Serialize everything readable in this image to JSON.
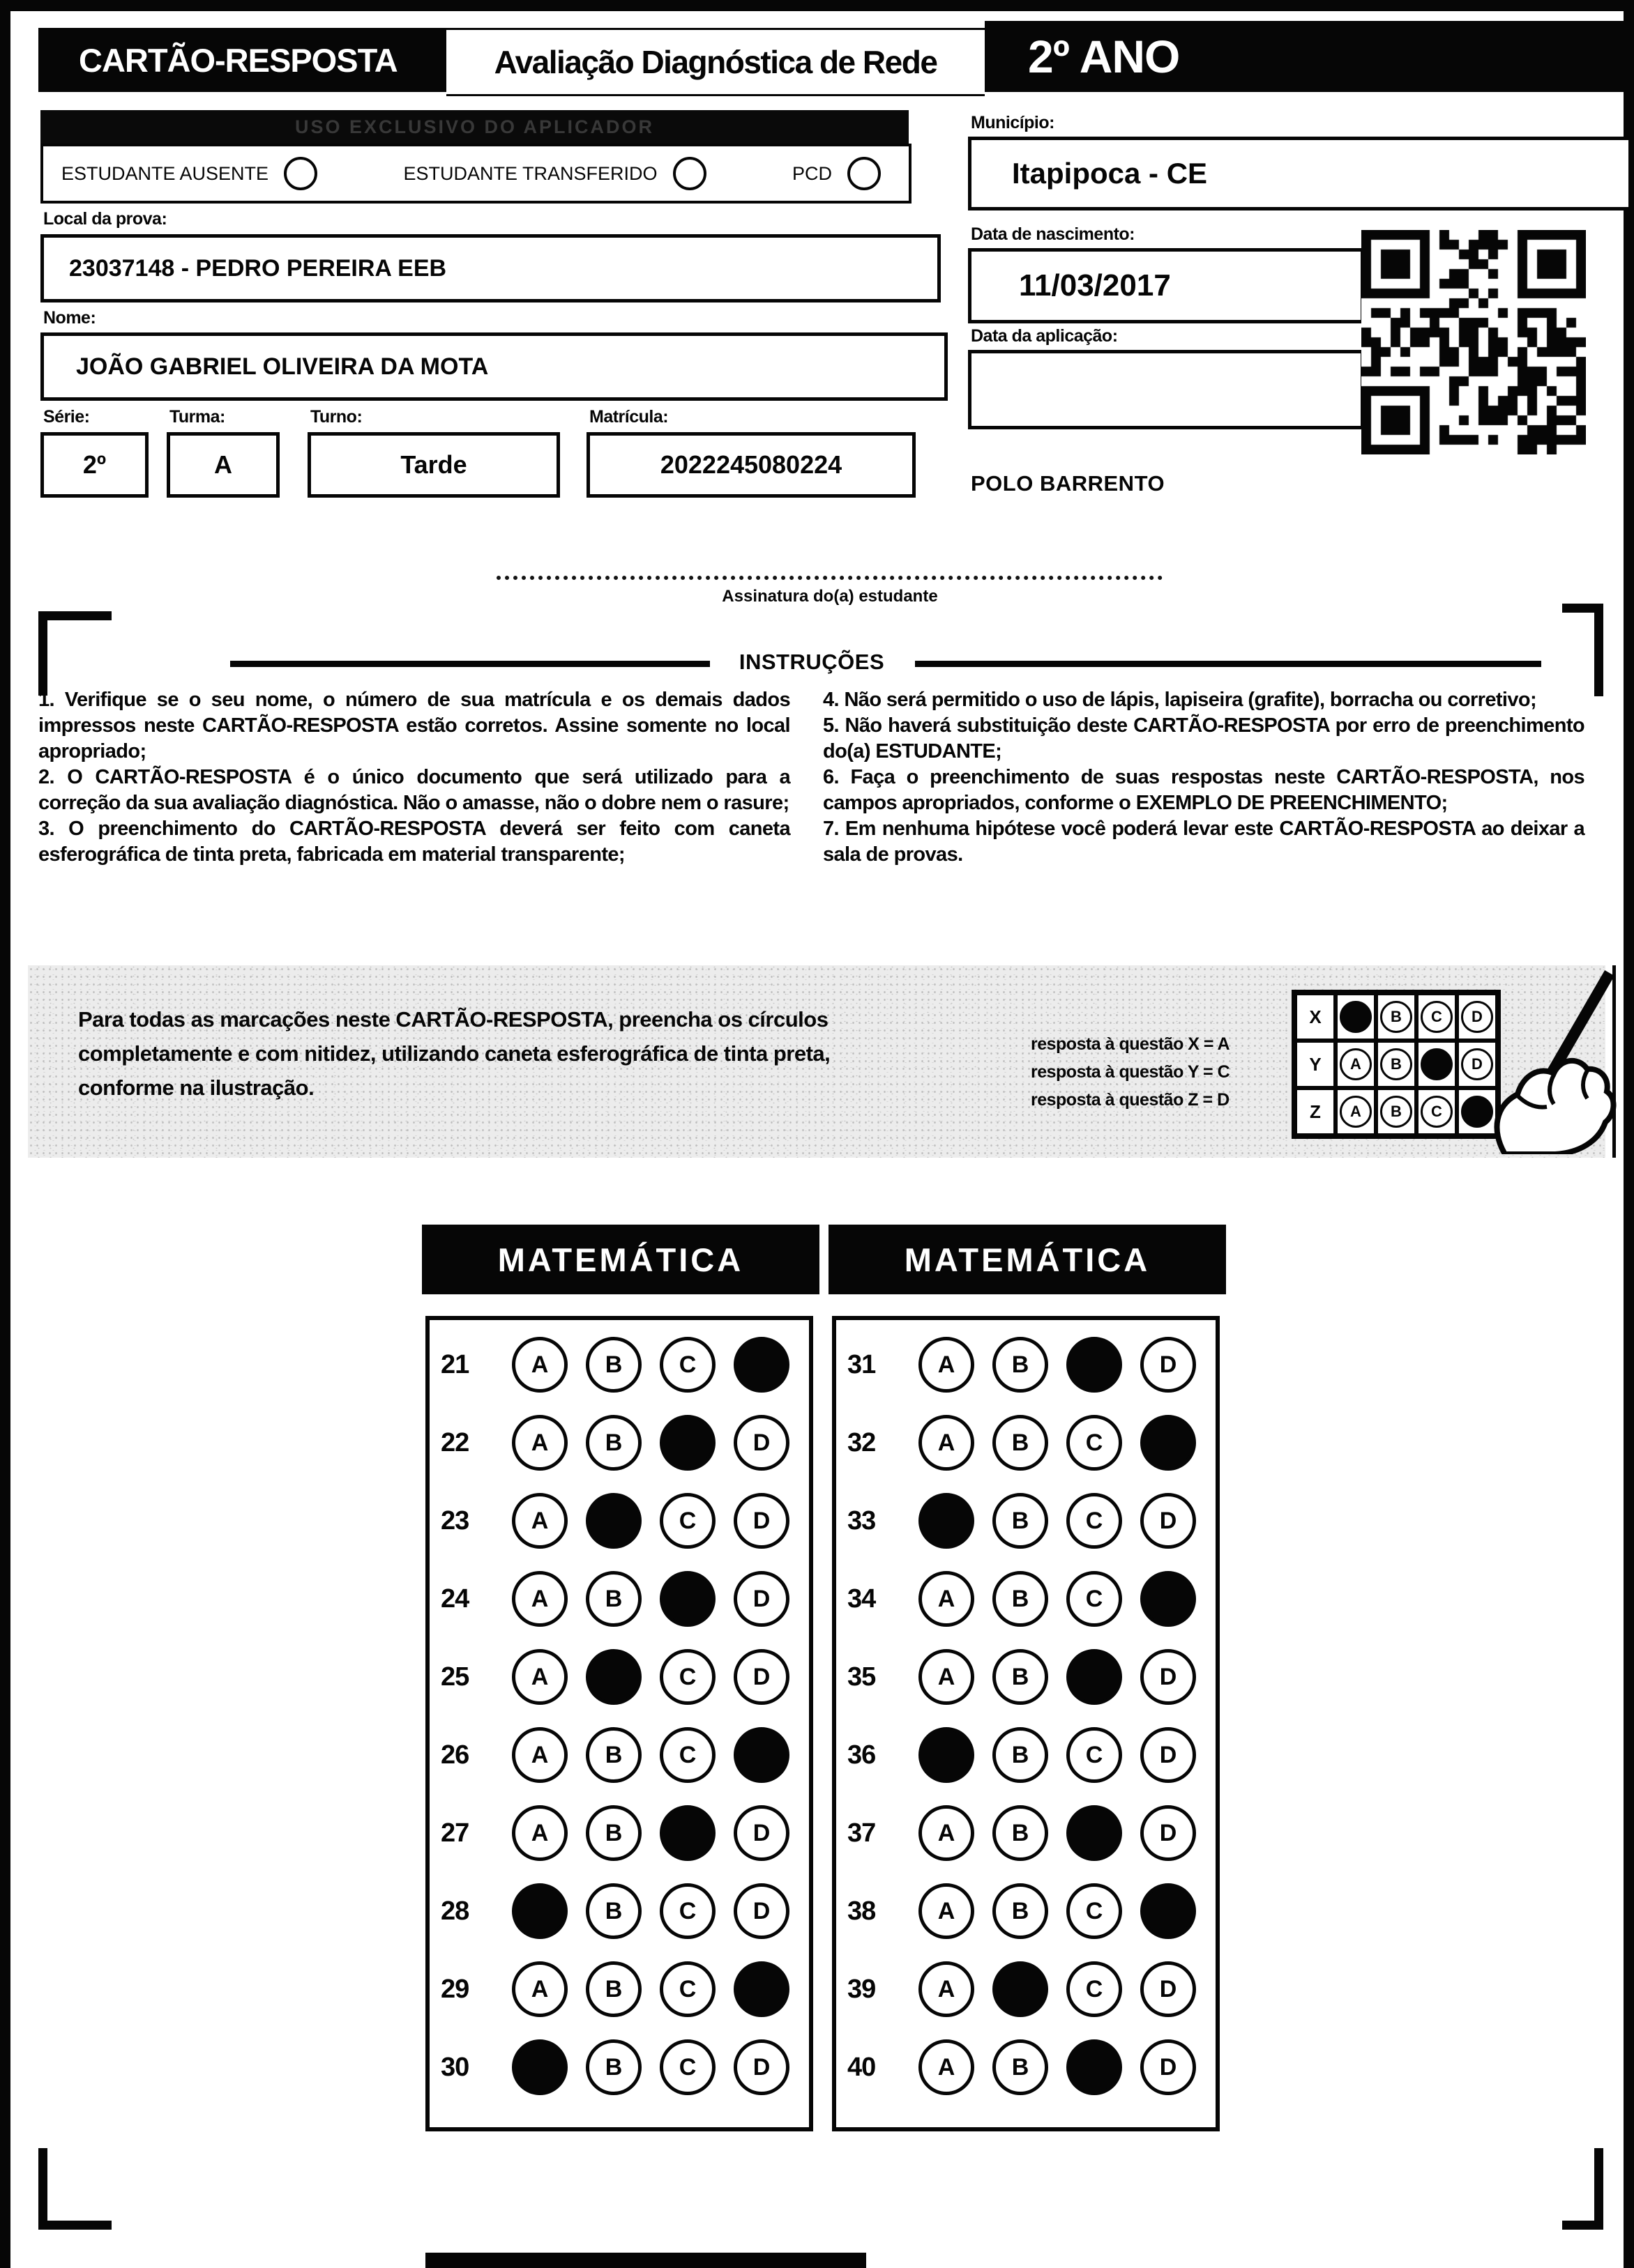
{
  "header": {
    "title": "CARTÃO-RESPOSTA",
    "subtitle": "Avaliação Diagnóstica de Rede",
    "grade": "2º ANO"
  },
  "admin_bar": {
    "label": "USO EXCLUSIVO DO APLICADOR"
  },
  "status_checks": [
    {
      "label": "ESTUDANTE AUSENTE"
    },
    {
      "label": "ESTUDANTE TRANSFERIDO"
    },
    {
      "label": "PCD"
    }
  ],
  "student": {
    "local_label": "Local da prova:",
    "local": "23037148 - PEDRO PEREIRA EEB",
    "nome_label": "Nome:",
    "nome": "JOÃO GABRIEL OLIVEIRA DA MOTA",
    "serie_label": "Série:",
    "serie": "2º",
    "turma_label": "Turma:",
    "turma": "A",
    "turno_label": "Turno:",
    "turno": "Tarde",
    "matricula_label": "Matrícula:",
    "matricula": "2022245080224",
    "municipio_label": "Município:",
    "municipio": "Itapipoca - CE",
    "nascimento_label": "Data de nascimento:",
    "nascimento": "11/03/2017",
    "aplicacao_label": "Data da aplicação:",
    "aplicacao": "",
    "polo": "POLO BARRENTO"
  },
  "signature_label": "Assinatura do(a) estudante",
  "instructions": {
    "title": "INSTRUÇÕES",
    "left": [
      "1. Verifique se o seu nome, o número de sua matrícula e os demais dados impressos neste CARTÃO-RESPOSTA estão corretos. Assine somente no local apropriado;",
      "2. O CARTÃO-RESPOSTA é o único documento que será utilizado para a correção da sua avaliação diagnóstica. Não o amasse, não o dobre nem o rasure;",
      "3. O preenchimento do CARTÃO-RESPOSTA deverá ser feito com caneta esferográfica de tinta preta, fabricada em material transparente;"
    ],
    "right": [
      "4. Não será permitido o uso de lápis, lapiseira (grafite), borracha ou corretivo;",
      "5. Não haverá substituição deste CARTÃO-RESPOSTA por erro de preenchimento do(a) ESTUDANTE;",
      "6. Faça o preenchimento de suas respostas neste CARTÃO-RESPOSTA, nos campos apropriados, conforme o EXEMPLO DE PREENCHIMENTO;",
      "7. Em nenhuma hipótese você poderá levar este CARTÃO-RESPOSTA ao deixar a sala de provas."
    ]
  },
  "example": {
    "text": "Para todas as marcações neste CARTÃO-RESPOSTA, preencha os círculos completamente e com nitidez, utilizando caneta esferográfica de tinta preta, conforme na ilustração.",
    "legend": [
      "resposta à questão X = A",
      "resposta à questão Y = C",
      "resposta à questão Z = D"
    ],
    "options": [
      "A",
      "B",
      "C",
      "D"
    ],
    "rows": [
      {
        "label": "X",
        "filled": "A"
      },
      {
        "label": "Y",
        "filled": "C"
      },
      {
        "label": "Z",
        "filled": "D"
      }
    ]
  },
  "answers": {
    "options": [
      "A",
      "B",
      "C",
      "D"
    ],
    "sections": [
      {
        "title": "MATEMÁTICA",
        "questions": [
          {
            "n": 21,
            "filled": "D"
          },
          {
            "n": 22,
            "filled": "C"
          },
          {
            "n": 23,
            "filled": "B"
          },
          {
            "n": 24,
            "filled": "C"
          },
          {
            "n": 25,
            "filled": "B"
          },
          {
            "n": 26,
            "filled": "D"
          },
          {
            "n": 27,
            "filled": "C"
          },
          {
            "n": 28,
            "filled": "A"
          },
          {
            "n": 29,
            "filled": "D"
          },
          {
            "n": 30,
            "filled": "A"
          }
        ]
      },
      {
        "title": "MATEMÁTICA",
        "questions": [
          {
            "n": 31,
            "filled": "C"
          },
          {
            "n": 32,
            "filled": "D"
          },
          {
            "n": 33,
            "filled": "A"
          },
          {
            "n": 34,
            "filled": "D"
          },
          {
            "n": 35,
            "filled": "C"
          },
          {
            "n": 36,
            "filled": "A"
          },
          {
            "n": 37,
            "filled": "C"
          },
          {
            "n": 38,
            "filled": "D"
          },
          {
            "n": 39,
            "filled": "B"
          },
          {
            "n": 40,
            "filled": "C"
          }
        ]
      }
    ]
  },
  "colors": {
    "ink": "#060606",
    "paper": "#ffffff"
  }
}
